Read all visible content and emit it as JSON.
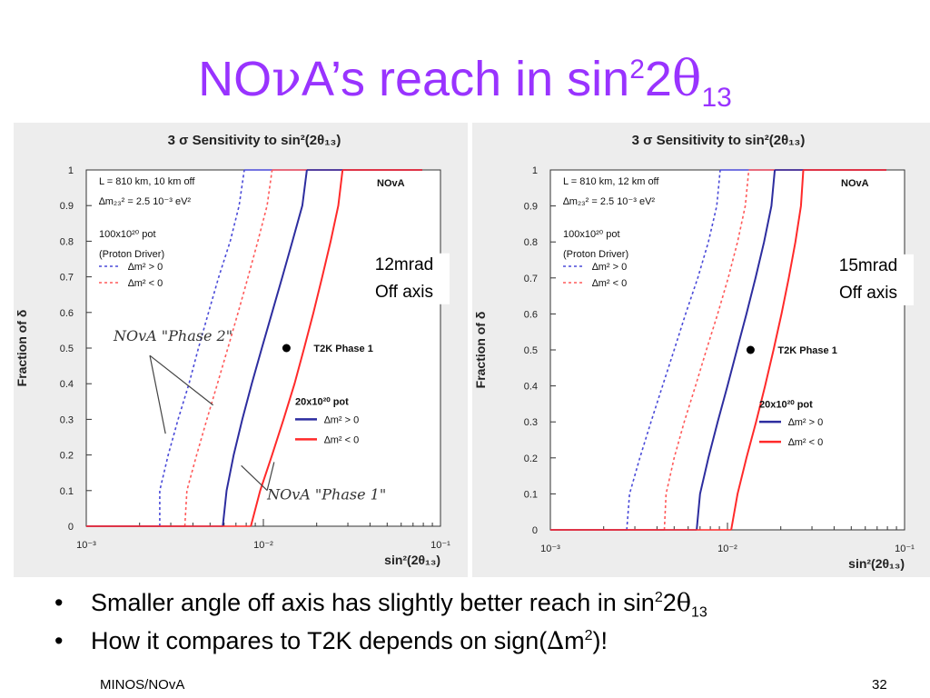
{
  "slide": {
    "title_main": "NO",
    "title_nu": "ν",
    "title_rest": "A’s reach in sin",
    "title_sup": "2",
    "title_two": "2",
    "title_theta": "θ",
    "title_sub": "13"
  },
  "bullets": [
    {
      "text": "Smaller angle off axis has slightly better reach in sin",
      "sup": "2",
      "two": "2",
      "theta": "θ",
      "sub": "13"
    },
    {
      "text": "How it compares to T2K depends on sign(",
      "delta": "∆",
      "m": "m",
      "sup": "2",
      "close": ")!"
    }
  ],
  "bullet_symbol": "•",
  "footer": {
    "left": "MINOS/NOvA",
    "page": "32"
  },
  "colors": {
    "title": "#9933ff",
    "red": "#ff2a2a",
    "blue": "#2d2d9f",
    "dashed_red": "#ff5a5a",
    "dashed_blue": "#4a4ad8"
  },
  "chart_data": [
    {
      "type": "line",
      "title": "3 σ Sensitivity to sin²(2θ₁₃)",
      "ylabel": "Fraction of δ",
      "xlabel": "sin²(2θ₁₃)",
      "xscale": "log",
      "xlim": [
        0.001,
        0.1
      ],
      "ylim": [
        0,
        1
      ],
      "xticks": [
        "10⁻³",
        "10⁻²",
        "10⁻¹"
      ],
      "yticks": [
        "0",
        "0.1",
        "0.2",
        "0.3",
        "0.4",
        "0.5",
        "0.6",
        "0.7",
        "0.8",
        "0.9",
        "1"
      ],
      "info_lines": [
        "L = 810 km, 10 km off",
        "∆m₂₃² = 2.5 10⁻³ eV²",
        "100x10²⁰ pot",
        "(Proton Driver)"
      ],
      "detector_label": "NOvA",
      "legend_top": [
        {
          "label": "∆m² > 0",
          "style": "dashed",
          "color": "#4a4ad8"
        },
        {
          "label": "∆m² < 0",
          "style": "dashed",
          "color": "#ff5a5a"
        }
      ],
      "legend_bottom_title": "20x10²⁰ pot",
      "legend_bottom": [
        {
          "label": "∆m² > 0",
          "style": "solid",
          "color": "#2d2d9f"
        },
        {
          "label": "∆m² < 0",
          "style": "solid",
          "color": "#ff2a2a"
        }
      ],
      "t2k_point": {
        "x": 0.0135,
        "y": 0.5,
        "label": "T2K Phase 1"
      },
      "off_axis_label": [
        "12mrad",
        "Off axis"
      ],
      "annotations": [
        "NOvA \"Phase 2\"",
        "NOvA \"Phase 1\""
      ],
      "series": [
        {
          "name": "∆m² > 0 (100x10²⁰ pot)",
          "style": "dashed",
          "color": "#4a4ad8",
          "x": [
            0.0026,
            0.0026,
            0.0029,
            0.0033,
            0.0038,
            0.0043,
            0.0049,
            0.0056,
            0.0065,
            0.0073,
            0.0078
          ],
          "y": [
            0,
            0.1,
            0.2,
            0.3,
            0.4,
            0.5,
            0.6,
            0.7,
            0.8,
            0.9,
            1.0
          ]
        },
        {
          "name": "∆m² < 0 (100x10²⁰ pot)",
          "style": "dashed",
          "color": "#ff5a5a",
          "x": [
            0.0036,
            0.0037,
            0.0042,
            0.0048,
            0.0055,
            0.0063,
            0.0072,
            0.0082,
            0.0093,
            0.0105,
            0.0112
          ],
          "y": [
            0,
            0.1,
            0.2,
            0.3,
            0.4,
            0.5,
            0.6,
            0.7,
            0.8,
            0.9,
            1.0
          ]
        },
        {
          "name": "∆m² > 0 (20x10²⁰ pot)",
          "style": "solid",
          "color": "#2d2d9f",
          "x": [
            0.0059,
            0.0062,
            0.0068,
            0.0076,
            0.0086,
            0.0098,
            0.0112,
            0.0128,
            0.0146,
            0.0166,
            0.0176
          ],
          "y": [
            0,
            0.1,
            0.2,
            0.3,
            0.4,
            0.5,
            0.6,
            0.7,
            0.8,
            0.9,
            1.0
          ]
        },
        {
          "name": "∆m² < 0 (20x10²⁰ pot)",
          "style": "solid",
          "color": "#ff2a2a",
          "x": [
            0.0085,
            0.0096,
            0.0112,
            0.013,
            0.015,
            0.017,
            0.0192,
            0.0215,
            0.024,
            0.0265,
            0.028
          ],
          "y": [
            0,
            0.1,
            0.2,
            0.3,
            0.4,
            0.5,
            0.6,
            0.7,
            0.8,
            0.9,
            1.0
          ]
        }
      ]
    },
    {
      "type": "line",
      "title": "3 σ Sensitivity to sin²(2θ₁₃)",
      "ylabel": "Fraction of δ",
      "xlabel": "sin²(2θ₁₃)",
      "xscale": "log",
      "xlim": [
        0.001,
        0.1
      ],
      "ylim": [
        0,
        1
      ],
      "xticks": [
        "10⁻³",
        "10⁻²",
        "10⁻¹"
      ],
      "yticks": [
        "0",
        "0.1",
        "0.2",
        "0.3",
        "0.4",
        "0.5",
        "0.6",
        "0.7",
        "0.8",
        "0.9",
        "1"
      ],
      "info_lines": [
        "L = 810 km, 12 km off",
        "∆m₂₃² = 2.5 10⁻³ eV²",
        "100x10²⁰ pot",
        "(Proton Driver)"
      ],
      "detector_label": "NOvA",
      "legend_top": [
        {
          "label": "∆m² > 0",
          "style": "dashed",
          "color": "#4a4ad8"
        },
        {
          "label": "∆m² < 0",
          "style": "dashed",
          "color": "#ff5a5a"
        }
      ],
      "legend_bottom_title": "20x10²⁰ pot",
      "legend_bottom": [
        {
          "label": "∆m² > 0",
          "style": "solid",
          "color": "#2d2d9f"
        },
        {
          "label": "∆m² < 0",
          "style": "solid",
          "color": "#ff2a2a"
        }
      ],
      "t2k_point": {
        "x": 0.0135,
        "y": 0.5,
        "label": "T2K Phase 1"
      },
      "off_axis_label": [
        "15mrad",
        "Off axis"
      ],
      "annotations": [],
      "series": [
        {
          "name": "∆m² > 0 (100x10²⁰ pot)",
          "style": "dashed",
          "color": "#4a4ad8",
          "x": [
            0.0027,
            0.0028,
            0.0032,
            0.0037,
            0.0043,
            0.005,
            0.0058,
            0.0068,
            0.0078,
            0.0087,
            0.0091
          ],
          "y": [
            0,
            0.1,
            0.2,
            0.3,
            0.4,
            0.5,
            0.6,
            0.7,
            0.8,
            0.9,
            1.0
          ]
        },
        {
          "name": "∆m² < 0 (100x10²⁰ pot)",
          "style": "dashed",
          "color": "#ff5a5a",
          "x": [
            0.0044,
            0.0045,
            0.005,
            0.0057,
            0.0066,
            0.0076,
            0.0088,
            0.0101,
            0.0114,
            0.0126,
            0.0132
          ],
          "y": [
            0,
            0.1,
            0.2,
            0.3,
            0.4,
            0.5,
            0.6,
            0.7,
            0.8,
            0.9,
            1.0
          ]
        },
        {
          "name": "∆m² > 0 (20x10²⁰ pot)",
          "style": "solid",
          "color": "#2d2d9f",
          "x": [
            0.0067,
            0.007,
            0.0078,
            0.0088,
            0.01,
            0.0113,
            0.0128,
            0.0144,
            0.0161,
            0.0177,
            0.0185
          ],
          "y": [
            0,
            0.1,
            0.2,
            0.3,
            0.4,
            0.5,
            0.6,
            0.7,
            0.8,
            0.9,
            1.0
          ]
        },
        {
          "name": "∆m² < 0 (20x10²⁰ pot)",
          "style": "solid",
          "color": "#ff2a2a",
          "x": [
            0.0105,
            0.0114,
            0.0128,
            0.0145,
            0.0163,
            0.0182,
            0.0202,
            0.0222,
            0.0242,
            0.026,
            0.0268
          ],
          "y": [
            0,
            0.1,
            0.2,
            0.3,
            0.4,
            0.5,
            0.6,
            0.7,
            0.8,
            0.9,
            1.0
          ]
        }
      ]
    }
  ]
}
